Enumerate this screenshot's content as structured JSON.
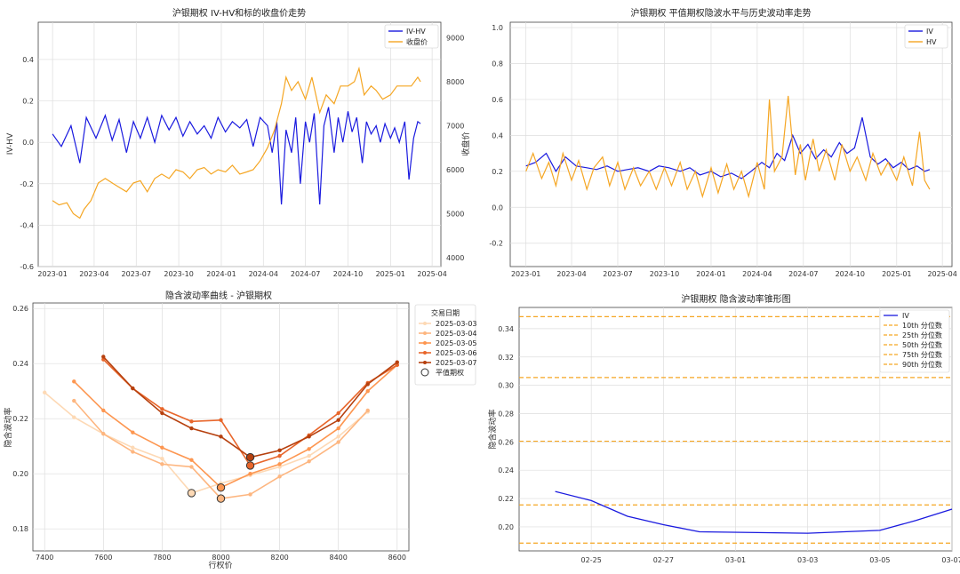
{
  "chart_data": [
    {
      "id": "c1",
      "type": "line",
      "title": "沪银期权 IV-HV和标的收盘价走势",
      "ylabel": "IV-HV",
      "y2label": "收盘价",
      "x_ticks": [
        "2023-01",
        "2023-04",
        "2023-07",
        "2023-10",
        "2024-01",
        "2024-04",
        "2024-07",
        "2024-10",
        "2025-01",
        "2025-04"
      ],
      "xlim": [
        "2022-12-01",
        "2025-04-20"
      ],
      "ylim": [
        -0.6,
        0.58
      ],
      "y_ticks": [
        -0.6,
        -0.4,
        -0.2,
        0.0,
        0.2,
        0.4
      ],
      "y2lim": [
        3800,
        9350
      ],
      "y2_ticks": [
        4000,
        5000,
        6000,
        7000,
        8000,
        9000
      ],
      "grid": true,
      "legend_position": "top-right",
      "colors": {
        "left_axis": "#1f77b4",
        "right_axis": "#d62728"
      },
      "series": [
        {
          "name": "IV-HV",
          "color": "#1a1adf",
          "axis": "left",
          "x": [
            "2023-01-01",
            "2023-01-20",
            "2023-02-10",
            "2023-03-01",
            "2023-03-15",
            "2023-04-05",
            "2023-04-25",
            "2023-05-10",
            "2023-05-25",
            "2023-06-10",
            "2023-06-25",
            "2023-07-10",
            "2023-07-25",
            "2023-08-10",
            "2023-08-25",
            "2023-09-10",
            "2023-09-25",
            "2023-10-10",
            "2023-10-25",
            "2023-11-10",
            "2023-11-25",
            "2023-12-10",
            "2023-12-25",
            "2024-01-10",
            "2024-01-25",
            "2024-02-10",
            "2024-02-25",
            "2024-03-10",
            "2024-03-25",
            "2024-04-10",
            "2024-04-20",
            "2024-04-30",
            "2024-05-10",
            "2024-05-20",
            "2024-06-01",
            "2024-06-10",
            "2024-06-20",
            "2024-07-01",
            "2024-07-10",
            "2024-07-20",
            "2024-08-01",
            "2024-08-10",
            "2024-08-20",
            "2024-09-01",
            "2024-09-10",
            "2024-09-20",
            "2024-10-01",
            "2024-10-10",
            "2024-10-20",
            "2024-11-01",
            "2024-11-10",
            "2024-11-20",
            "2024-12-01",
            "2024-12-10",
            "2024-12-20",
            "2025-01-01",
            "2025-01-10",
            "2025-01-20",
            "2025-02-01",
            "2025-02-10",
            "2025-02-20",
            "2025-03-01",
            "2025-03-07"
          ],
          "y": [
            0.04,
            -0.02,
            0.08,
            -0.1,
            0.12,
            0.02,
            0.13,
            0.01,
            0.11,
            -0.05,
            0.1,
            0.02,
            0.12,
            0.0,
            0.13,
            0.06,
            0.12,
            0.03,
            0.1,
            0.04,
            0.08,
            0.02,
            0.12,
            0.05,
            0.1,
            0.07,
            0.11,
            -0.02,
            0.12,
            0.08,
            -0.05,
            0.1,
            -0.3,
            0.06,
            -0.05,
            0.12,
            -0.2,
            0.1,
            0.0,
            0.14,
            -0.3,
            0.08,
            0.17,
            -0.05,
            0.12,
            0.0,
            0.15,
            0.05,
            0.12,
            -0.1,
            0.1,
            0.04,
            0.08,
            0.0,
            0.09,
            0.02,
            0.07,
            0.0,
            0.1,
            -0.18,
            0.02,
            0.1,
            0.09
          ]
        },
        {
          "name": "收盘价",
          "color": "#f5a623",
          "axis": "right",
          "x": [
            "2023-01-01",
            "2023-01-15",
            "2023-02-01",
            "2023-02-15",
            "2023-03-01",
            "2023-03-10",
            "2023-03-25",
            "2023-04-10",
            "2023-04-25",
            "2023-05-10",
            "2023-05-25",
            "2023-06-10",
            "2023-06-25",
            "2023-07-10",
            "2023-07-25",
            "2023-08-10",
            "2023-08-25",
            "2023-09-10",
            "2023-09-25",
            "2023-10-10",
            "2023-10-25",
            "2023-11-10",
            "2023-11-25",
            "2023-12-10",
            "2023-12-25",
            "2024-01-10",
            "2024-01-25",
            "2024-02-10",
            "2024-02-25",
            "2024-03-10",
            "2024-03-25",
            "2024-04-10",
            "2024-04-25",
            "2024-05-10",
            "2024-05-20",
            "2024-06-01",
            "2024-06-15",
            "2024-07-01",
            "2024-07-15",
            "2024-08-01",
            "2024-08-15",
            "2024-09-01",
            "2024-09-15",
            "2024-10-01",
            "2024-10-15",
            "2024-10-25",
            "2024-11-05",
            "2024-11-20",
            "2024-12-01",
            "2024-12-15",
            "2025-01-01",
            "2025-01-15",
            "2025-02-01",
            "2025-02-15",
            "2025-03-01",
            "2025-03-07"
          ],
          "y": [
            5300,
            5200,
            5250,
            5000,
            4900,
            5100,
            5300,
            5700,
            5800,
            5700,
            5600,
            5500,
            5700,
            5750,
            5500,
            5800,
            5900,
            5800,
            6000,
            5950,
            5800,
            6000,
            6050,
            5900,
            6000,
            5950,
            6100,
            5900,
            5950,
            6000,
            6200,
            6500,
            6900,
            7500,
            8100,
            7800,
            8000,
            7600,
            8100,
            7300,
            7700,
            7500,
            7900,
            7900,
            8000,
            8300,
            7700,
            7900,
            7800,
            7600,
            7700,
            7900,
            7900,
            7900,
            8100,
            8000
          ]
        }
      ]
    },
    {
      "id": "c2",
      "type": "line",
      "title": "沪银期权 平值期权隐波水平与历史波动率走势",
      "x_ticks": [
        "2023-01",
        "2023-04",
        "2023-07",
        "2023-10",
        "2024-01",
        "2024-04",
        "2024-07",
        "2024-10",
        "2025-01",
        "2025-04"
      ],
      "xlim": [
        "2022-12-01",
        "2025-04-20"
      ],
      "ylim": [
        -0.33,
        1.03
      ],
      "y_ticks": [
        -0.2,
        0.0,
        0.2,
        0.4,
        0.6,
        0.8,
        1.0
      ],
      "grid": true,
      "legend_position": "top-right",
      "series": [
        {
          "name": "IV",
          "color": "#1a1adf",
          "x": [
            "2023-01-01",
            "2023-01-20",
            "2023-02-10",
            "2023-03-01",
            "2023-03-20",
            "2023-04-10",
            "2023-05-01",
            "2023-05-20",
            "2023-06-10",
            "2023-07-01",
            "2023-07-20",
            "2023-08-10",
            "2023-09-01",
            "2023-09-20",
            "2023-10-10",
            "2023-11-01",
            "2023-11-20",
            "2023-12-10",
            "2024-01-01",
            "2024-01-20",
            "2024-02-10",
            "2024-03-01",
            "2024-03-20",
            "2024-04-10",
            "2024-04-25",
            "2024-05-10",
            "2024-05-25",
            "2024-06-10",
            "2024-06-25",
            "2024-07-10",
            "2024-07-25",
            "2024-08-10",
            "2024-08-25",
            "2024-09-10",
            "2024-09-25",
            "2024-10-10",
            "2024-10-25",
            "2024-11-10",
            "2024-11-25",
            "2024-12-10",
            "2024-12-25",
            "2025-01-10",
            "2025-01-25",
            "2025-02-10",
            "2025-02-25",
            "2025-03-07"
          ],
          "y": [
            0.23,
            0.25,
            0.3,
            0.2,
            0.28,
            0.23,
            0.22,
            0.21,
            0.23,
            0.2,
            0.21,
            0.22,
            0.2,
            0.23,
            0.22,
            0.2,
            0.22,
            0.18,
            0.2,
            0.17,
            0.19,
            0.16,
            0.2,
            0.25,
            0.22,
            0.3,
            0.26,
            0.4,
            0.3,
            0.35,
            0.27,
            0.32,
            0.28,
            0.36,
            0.3,
            0.33,
            0.5,
            0.28,
            0.24,
            0.27,
            0.22,
            0.25,
            0.21,
            0.23,
            0.2,
            0.21
          ]
        },
        {
          "name": "HV",
          "color": "#f5a623",
          "x": [
            "2023-01-01",
            "2023-01-15",
            "2023-02-01",
            "2023-02-15",
            "2023-03-01",
            "2023-03-15",
            "2023-04-01",
            "2023-04-15",
            "2023-05-01",
            "2023-05-15",
            "2023-06-01",
            "2023-06-15",
            "2023-07-01",
            "2023-07-15",
            "2023-08-01",
            "2023-08-15",
            "2023-09-01",
            "2023-09-15",
            "2023-10-01",
            "2023-10-15",
            "2023-11-01",
            "2023-11-15",
            "2023-12-01",
            "2023-12-15",
            "2024-01-01",
            "2024-01-15",
            "2024-02-01",
            "2024-02-15",
            "2024-03-01",
            "2024-03-15",
            "2024-04-01",
            "2024-04-15",
            "2024-04-25",
            "2024-05-05",
            "2024-05-20",
            "2024-06-01",
            "2024-06-15",
            "2024-06-25",
            "2024-07-05",
            "2024-07-20",
            "2024-08-01",
            "2024-08-15",
            "2024-09-01",
            "2024-09-15",
            "2024-10-01",
            "2024-10-15",
            "2024-11-01",
            "2024-11-15",
            "2024-12-01",
            "2024-12-15",
            "2025-01-01",
            "2025-01-15",
            "2025-02-01",
            "2025-02-15",
            "2025-02-25",
            "2025-03-07"
          ],
          "y": [
            0.2,
            0.3,
            0.16,
            0.25,
            0.12,
            0.3,
            0.15,
            0.26,
            0.1,
            0.22,
            0.28,
            0.12,
            0.25,
            0.1,
            0.22,
            0.12,
            0.2,
            0.1,
            0.22,
            0.12,
            0.25,
            0.1,
            0.2,
            0.06,
            0.22,
            0.08,
            0.24,
            0.1,
            0.2,
            0.06,
            0.25,
            0.1,
            0.6,
            0.2,
            0.28,
            0.62,
            0.18,
            0.35,
            0.15,
            0.38,
            0.2,
            0.32,
            0.15,
            0.35,
            0.2,
            0.28,
            0.15,
            0.3,
            0.18,
            0.25,
            0.15,
            0.28,
            0.12,
            0.42,
            0.15,
            0.1
          ]
        }
      ]
    },
    {
      "id": "c3",
      "type": "line",
      "title": "隐含波动率曲线 - 沪银期权",
      "xlabel": "行权价",
      "ylabel": "隐含波动率",
      "xlim": [
        7360,
        8640
      ],
      "x_ticks": [
        7400,
        7600,
        7800,
        8000,
        8200,
        8400,
        8600
      ],
      "ylim": [
        0.172,
        0.262
      ],
      "y_ticks": [
        0.18,
        0.2,
        0.22,
        0.24,
        0.26
      ],
      "grid": true,
      "legend_title": "交易日期",
      "legend_position": "right",
      "atm_label": "平值期权",
      "series": [
        {
          "name": "2025-03-03",
          "color": "#fdd9b5",
          "x": [
            7400,
            7500,
            7600,
            7700,
            7800,
            7900,
            8000,
            8100,
            8200,
            8300,
            8400,
            8500
          ],
          "y": [
            0.2295,
            0.2205,
            0.2145,
            0.2095,
            0.2055,
            0.193,
            0.1965,
            0.1995,
            0.2025,
            0.2065,
            0.2135,
            0.2225
          ],
          "atm": [
            7900,
            0.193
          ]
        },
        {
          "name": "2025-03-04",
          "color": "#fdb680",
          "x": [
            7500,
            7600,
            7700,
            7800,
            7900,
            8000,
            8100,
            8200,
            8300,
            8400,
            8500
          ],
          "y": [
            0.2265,
            0.2145,
            0.208,
            0.2035,
            0.2025,
            0.191,
            0.1925,
            0.199,
            0.2045,
            0.2115,
            0.223
          ],
          "atm": [
            8000,
            0.191
          ]
        },
        {
          "name": "2025-03-05",
          "color": "#fd9650",
          "x": [
            7500,
            7600,
            7700,
            7800,
            7900,
            8000,
            8100,
            8200,
            8300,
            8400,
            8500,
            8600
          ],
          "y": [
            0.2335,
            0.223,
            0.215,
            0.2095,
            0.205,
            0.195,
            0.2,
            0.2035,
            0.209,
            0.2165,
            0.23,
            0.2395
          ],
          "atm": [
            8000,
            0.195
          ]
        },
        {
          "name": "2025-03-06",
          "color": "#e8662b",
          "x": [
            7600,
            7700,
            7800,
            7900,
            8000,
            8100,
            8200,
            8300,
            8400,
            8500,
            8600
          ],
          "y": [
            0.2415,
            0.231,
            0.2235,
            0.219,
            0.2195,
            0.203,
            0.2065,
            0.214,
            0.222,
            0.233,
            0.2395
          ],
          "atm": [
            8100,
            0.203
          ]
        },
        {
          "name": "2025-03-07",
          "color": "#b6400e",
          "x": [
            7600,
            7700,
            7800,
            7900,
            8000,
            8100,
            8200,
            8300,
            8400,
            8500,
            8600
          ],
          "y": [
            0.2425,
            0.231,
            0.222,
            0.2165,
            0.2135,
            0.206,
            0.2085,
            0.2135,
            0.2195,
            0.2325,
            0.2405
          ],
          "atm": [
            8100,
            0.206
          ]
        }
      ]
    },
    {
      "id": "c4",
      "type": "line",
      "title": "沪银期权 隐含波动率锥形图",
      "ylabel": "隐含波动率",
      "xlim": [
        "2025-02-23",
        "2025-03-07"
      ],
      "x_ticks": [
        "02-25",
        "02-27",
        "03-01",
        "03-03",
        "03-05",
        "03-07"
      ],
      "ylim": [
        0.183,
        0.355
      ],
      "y_ticks": [
        0.2,
        0.22,
        0.24,
        0.26,
        0.28,
        0.3,
        0.32,
        0.34
      ],
      "grid": true,
      "legend_position": "top-right",
      "series": [
        {
          "name": "IV",
          "color": "#1a1adf",
          "x": [
            "2025-02-24",
            "2025-02-25",
            "2025-02-26",
            "2025-02-27",
            "2025-02-28",
            "2025-03-03",
            "2025-03-04",
            "2025-03-05",
            "2025-03-06",
            "2025-03-07"
          ],
          "y": [
            0.225,
            0.2185,
            0.2075,
            0.2015,
            0.1965,
            0.1955,
            0.1965,
            0.1975,
            0.2045,
            0.2125
          ]
        }
      ],
      "hlines": [
        {
          "name": "10th 分位数",
          "value": 0.1885,
          "color": "#f5a623"
        },
        {
          "name": "25th 分位数",
          "value": 0.2155,
          "color": "#f5a623"
        },
        {
          "name": "50th 分位数",
          "value": 0.2605,
          "color": "#f5a623"
        },
        {
          "name": "75th 分位数",
          "value": 0.3055,
          "color": "#f5a623"
        },
        {
          "name": "90th 分位数",
          "value": 0.3485,
          "color": "#f5a623"
        }
      ]
    }
  ]
}
